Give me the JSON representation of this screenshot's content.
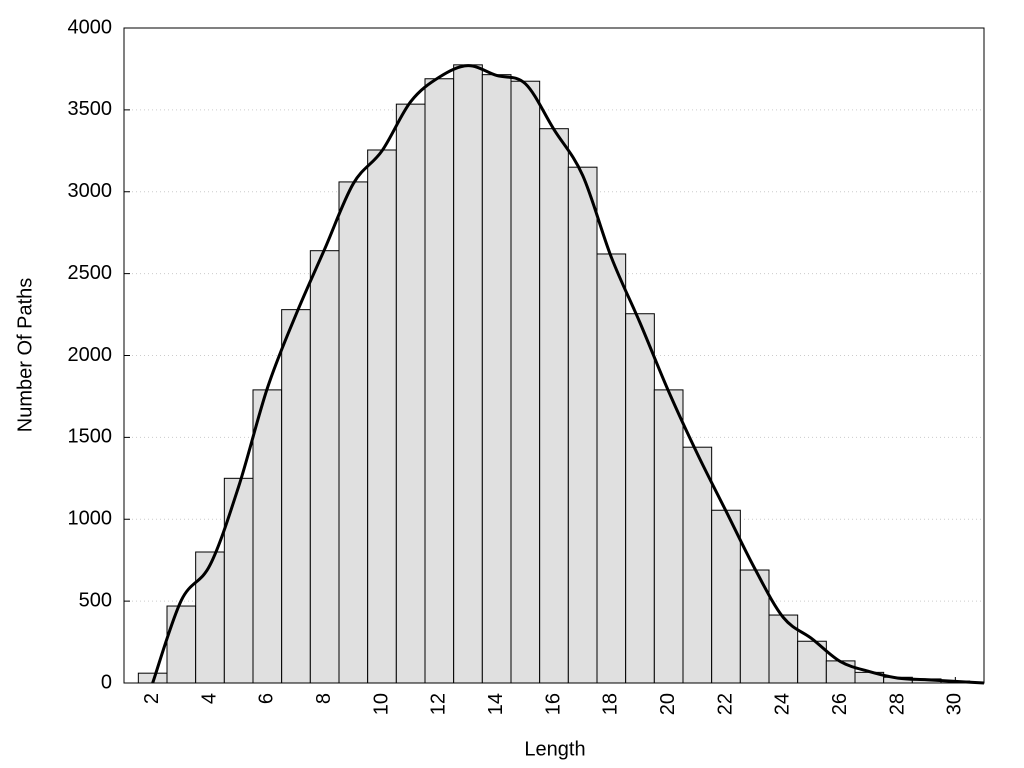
{
  "chart_data": {
    "type": "histogram",
    "x_label": "Length",
    "y_label": "Number Of Paths",
    "bins": [
      1.5,
      2.5,
      3.5,
      4.5,
      5.5,
      6.5,
      7.5,
      8.5,
      9.5,
      10.5,
      11.5,
      12.5,
      13.5,
      14.5,
      15.5,
      16.5,
      17.5,
      18.5,
      19.5,
      20.5,
      21.5,
      22.5,
      23.5,
      24.5,
      25.5,
      26.5,
      27.5,
      28.5,
      29.5,
      30.5
    ],
    "counts": [
      60,
      470,
      800,
      1250,
      1790,
      2280,
      2640,
      3060,
      3255,
      3535,
      3690,
      3775,
      3715,
      3675,
      3385,
      3150,
      2620,
      2255,
      1790,
      1440,
      1055,
      690,
      415,
      255,
      135,
      65,
      35,
      25,
      12
    ],
    "color": "#e0e0e0",
    "line": {
      "color": "#000000",
      "x": [
        2,
        3,
        4,
        5,
        6,
        7,
        8,
        9,
        10,
        11,
        12,
        13,
        14,
        15,
        16,
        17,
        18,
        19,
        20,
        21,
        22,
        23,
        24,
        25,
        26,
        27,
        28,
        29,
        30,
        31
      ],
      "values": [
        0,
        505,
        720,
        1200,
        1800,
        2250,
        2650,
        3050,
        3250,
        3550,
        3700,
        3770,
        3710,
        3660,
        3380,
        3100,
        2600,
        2200,
        1780,
        1400,
        1050,
        700,
        400,
        270,
        130,
        70,
        30,
        20,
        10,
        0
      ]
    },
    "xlim": [
      1,
      31
    ],
    "ylim": [
      0,
      4000
    ],
    "xticks": [
      2,
      4,
      6,
      8,
      10,
      12,
      14,
      16,
      18,
      20,
      22,
      24,
      26,
      28,
      30
    ],
    "yticks": [
      0,
      500,
      1000,
      1500,
      2000,
      2500,
      3000,
      3500,
      4000
    ],
    "grid": true
  }
}
